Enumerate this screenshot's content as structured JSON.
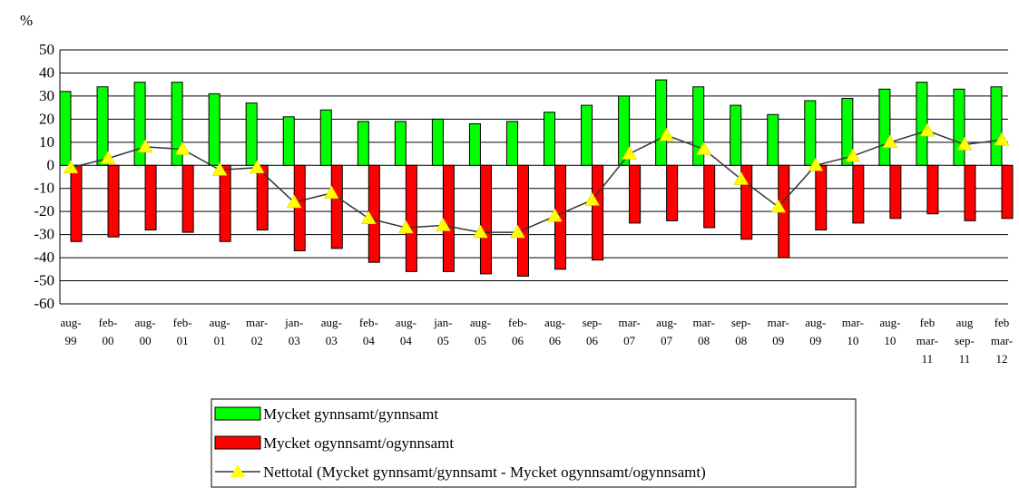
{
  "chart_data": {
    "type": "bar",
    "y_label": "%",
    "categories": [
      "aug-\n99",
      "feb-\n00",
      "aug-\n00",
      "feb-\n01",
      "aug-\n01",
      "mar-\n02",
      "jan-\n03",
      "aug-\n03",
      "feb-\n04",
      "aug-\n04",
      "jan-\n05",
      "aug-\n05",
      "feb-\n06",
      "aug-\n06",
      "sep-\n06",
      "mar-\n07",
      "aug-\n07",
      "mar-\n08",
      "sep-\n08",
      "mar-\n09",
      "aug-\n09",
      "mar-\n10",
      "aug-\n10",
      "feb\nmar-\n11",
      "aug\nsep-\n11",
      "feb\nmar-\n12"
    ],
    "series": [
      {
        "name": "Mycket gynnsamt/gynnsamt",
        "type": "bar",
        "color": "#00ff00",
        "values": [
          32,
          34,
          36,
          36,
          31,
          27,
          21,
          24,
          19,
          19,
          20,
          18,
          19,
          23,
          26,
          30,
          37,
          34,
          26,
          22,
          28,
          29,
          33,
          36,
          33,
          34
        ]
      },
      {
        "name": "Mycket ogynnsamt/ogynnsamt",
        "type": "bar",
        "color": "#ff0000",
        "values": [
          -33,
          -31,
          -28,
          -29,
          -33,
          -28,
          -37,
          -36,
          -42,
          -46,
          -46,
          -47,
          -48,
          -45,
          -41,
          -25,
          -24,
          -27,
          -32,
          -40,
          -28,
          -25,
          -23,
          -21,
          -24,
          -23
        ]
      },
      {
        "name": "Nettotal (Mycket gynnsamt/gynnsamt - Mycket ogynnsamt/ogynnsamt)",
        "type": "line",
        "color": "#333333",
        "marker_color": "#ffff00",
        "values": [
          -1,
          3,
          8,
          7,
          -2,
          -1,
          -16,
          -12,
          -23,
          -27,
          -26,
          -29,
          -29,
          -22,
          -15,
          5,
          13,
          7,
          -6,
          -18,
          0,
          4,
          10,
          15,
          9,
          11
        ]
      }
    ],
    "ylim": [
      -60,
      50
    ],
    "yticks": [
      -60,
      -50,
      -40,
      -30,
      -20,
      -10,
      0,
      10,
      20,
      30,
      40,
      50
    ],
    "grid": true,
    "legend": "bottom"
  }
}
